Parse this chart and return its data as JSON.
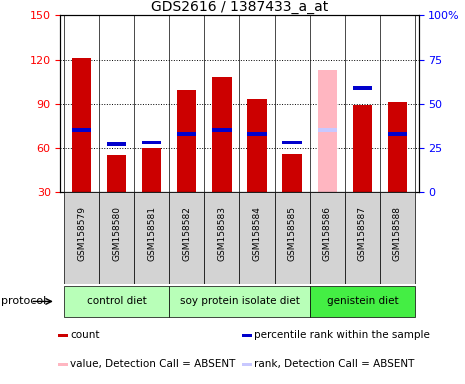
{
  "title": "GDS2616 / 1387433_a_at",
  "samples": [
    "GSM158579",
    "GSM158580",
    "GSM158581",
    "GSM158582",
    "GSM158583",
    "GSM158584",
    "GSM158585",
    "GSM158586",
    "GSM158587",
    "GSM158588"
  ],
  "count_values": [
    121,
    55,
    60,
    99,
    108,
    93,
    56,
    0,
    89,
    91
  ],
  "percentile_values": [
    35,
    27,
    28,
    33,
    35,
    33,
    28,
    0,
    59,
    33
  ],
  "absent_count": [
    0,
    0,
    0,
    0,
    0,
    0,
    0,
    113,
    0,
    0
  ],
  "absent_rank": [
    0,
    0,
    0,
    0,
    0,
    0,
    0,
    35,
    0,
    0
  ],
  "count_color": "#cc0000",
  "percentile_color": "#0000cc",
  "absent_count_color": "#ffb6c1",
  "absent_rank_color": "#c8c8ff",
  "ylim_left": [
    30,
    150
  ],
  "ylim_right": [
    0,
    100
  ],
  "yticks_left": [
    30,
    60,
    90,
    120,
    150
  ],
  "yticks_right": [
    0,
    25,
    50,
    75,
    100
  ],
  "gp": [
    {
      "label": "control diet",
      "start": 0,
      "end": 2,
      "color": "#b8ffb8"
    },
    {
      "label": "soy protein isolate diet",
      "start": 3,
      "end": 6,
      "color": "#b8ffb8"
    },
    {
      "label": "genistein diet",
      "start": 7,
      "end": 9,
      "color": "#44ee44"
    }
  ],
  "bar_width": 0.55,
  "protocol_label": "protocol",
  "legend_items": [
    {
      "label": "count",
      "color": "#cc0000"
    },
    {
      "label": "percentile rank within the sample",
      "color": "#0000cc"
    },
    {
      "label": "value, Detection Call = ABSENT",
      "color": "#ffb6c1"
    },
    {
      "label": "rank, Detection Call = ABSENT",
      "color": "#c8c8ff"
    }
  ]
}
